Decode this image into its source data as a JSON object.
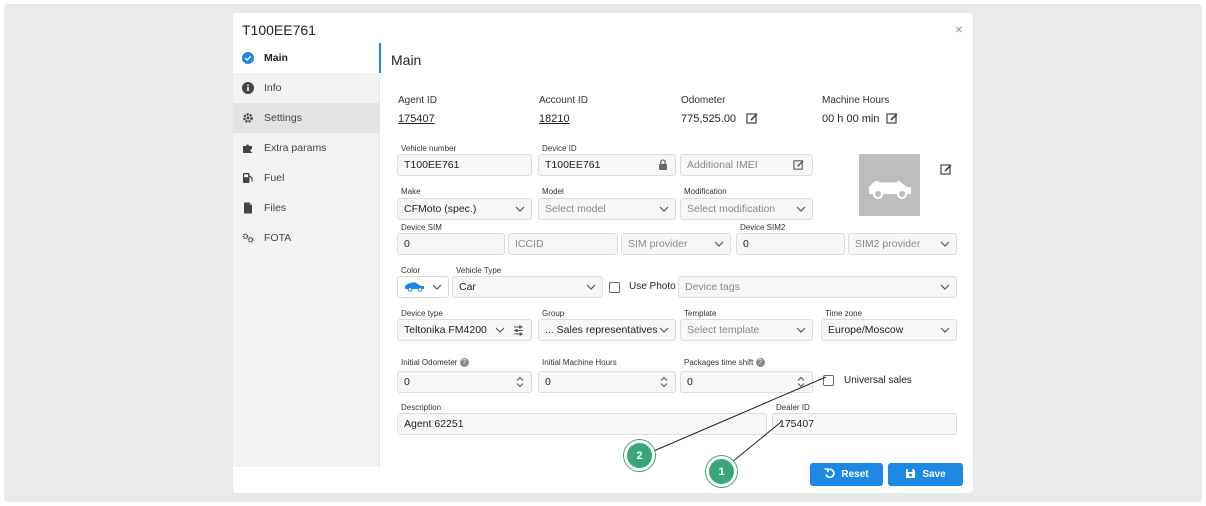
{
  "modal": {
    "title": "T100EE761",
    "close": "×"
  },
  "sidebar": {
    "items": [
      {
        "label": "Main"
      },
      {
        "label": "Info"
      },
      {
        "label": "Settings"
      },
      {
        "label": "Extra params"
      },
      {
        "label": "Fuel"
      },
      {
        "label": "Files"
      },
      {
        "label": "FOTA"
      }
    ]
  },
  "main": {
    "title": "Main"
  },
  "stats": {
    "agent": {
      "label": "Agent ID",
      "value": "175407"
    },
    "account": {
      "label": "Account ID",
      "value": "18210"
    },
    "odometer": {
      "label": "Odometer",
      "value": "775,525.00"
    },
    "hours": {
      "label": "Machine Hours",
      "value": "00 h 00 min"
    }
  },
  "form": {
    "vehicle_number": {
      "label": "Vehicle number",
      "value": "T100EE761"
    },
    "device_id": {
      "label": "Device ID",
      "value": "T100EE761"
    },
    "imei": {
      "placeholder": "Additional IMEI"
    },
    "make": {
      "label": "Make",
      "value": "CFMoto (spec.)"
    },
    "model": {
      "label": "Model",
      "placeholder": "Select model"
    },
    "modification": {
      "label": "Modification",
      "placeholder": "Select modification"
    },
    "device_sim": {
      "label": "Device SIM",
      "value": "0"
    },
    "iccid": {
      "placeholder": "ICCID"
    },
    "sim_provider": {
      "placeholder": "SIM provider"
    },
    "device_sim2": {
      "label": "Device SIM2",
      "value": "0"
    },
    "sim2_provider": {
      "placeholder": "SIM2 provider"
    },
    "color": {
      "label": "Color",
      "value_color": "#1e88e5"
    },
    "vehicle_type": {
      "label": "Vehicle Type",
      "value": "Car"
    },
    "use_photo": {
      "label": "Use Photo",
      "checked": false
    },
    "device_tags": {
      "placeholder": "Device tags"
    },
    "device_type": {
      "label": "Device type",
      "value": "Teltonika FM4200"
    },
    "group": {
      "label": "Group",
      "value": "... Sales representatives"
    },
    "template": {
      "label": "Template",
      "placeholder": "Select template"
    },
    "time_zone": {
      "label": "Time zone",
      "value": "Europe/Moscow"
    },
    "initial_odometer": {
      "label": "Initial Odometer",
      "value": "0"
    },
    "initial_hours": {
      "label": "Initial Machine Hours",
      "value": "0"
    },
    "time_shift": {
      "label": "Packages time shift",
      "value": "0"
    },
    "universal_sales": {
      "label": "Universal sales",
      "checked": false
    },
    "description": {
      "label": "Description",
      "value": "Agent 62251"
    },
    "dealer_id": {
      "label": "Dealer ID",
      "value": "175407"
    }
  },
  "buttons": {
    "reset": "Reset",
    "save": "Save"
  },
  "callouts": [
    "1",
    "2"
  ],
  "colors": {
    "accent": "#1e88e5",
    "callout": "#3aa57a"
  }
}
